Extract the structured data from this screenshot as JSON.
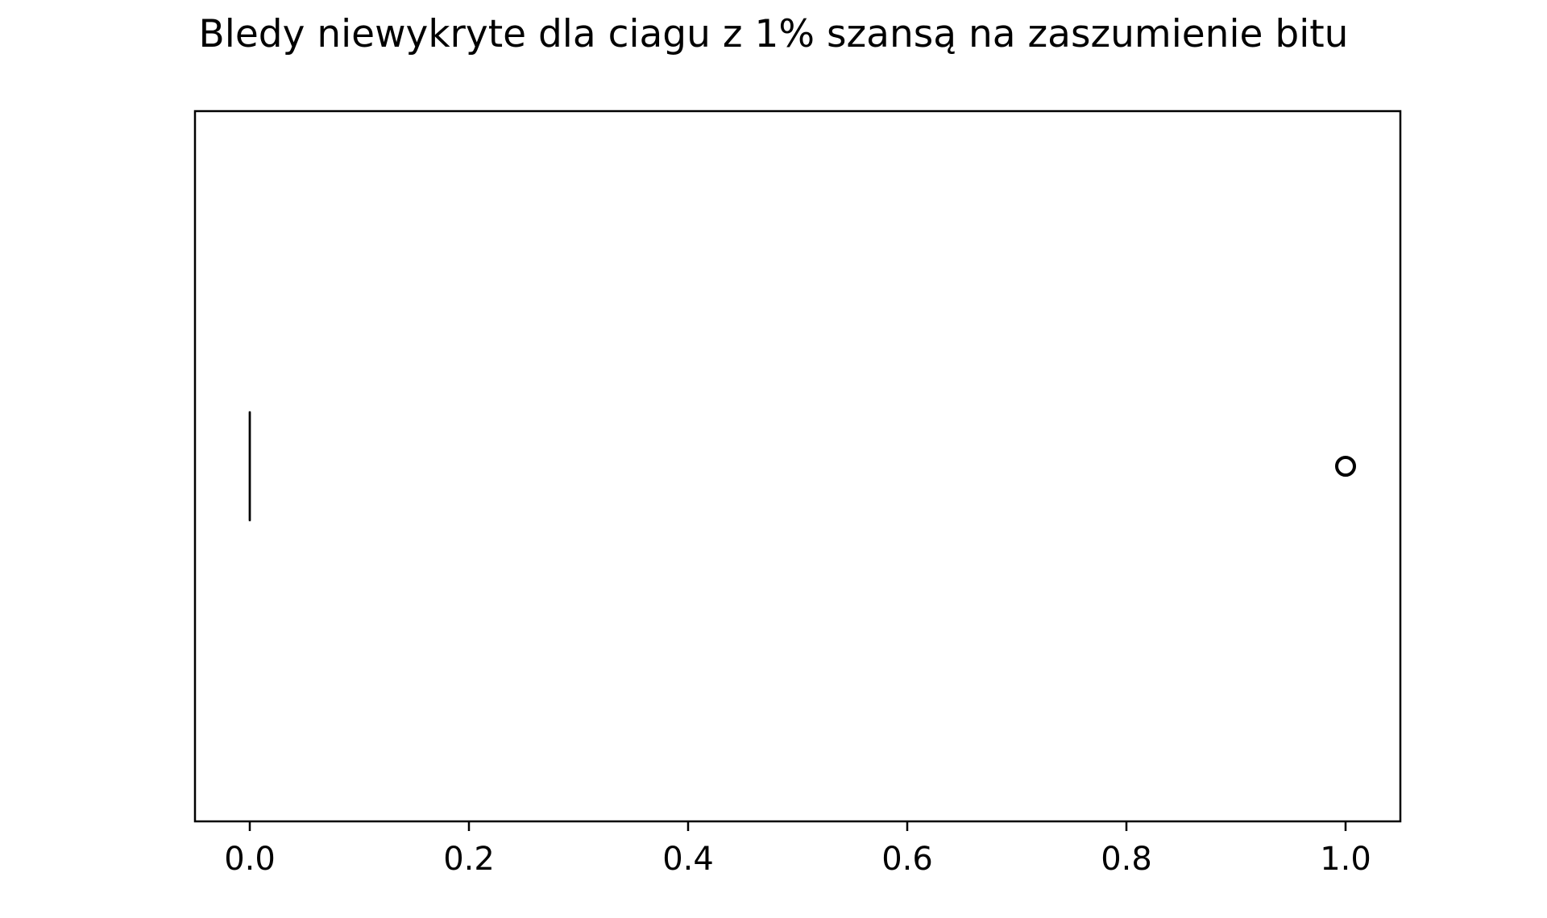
{
  "chart_data": {
    "type": "boxplot",
    "orientation": "horizontal",
    "title": "Bledy niewykryte dla ciagu z 1% szansą na zaszumienie bitu",
    "xlabel": "",
    "ylabel": "",
    "xlim": [
      -0.05,
      1.05
    ],
    "xticks": [
      0.0,
      0.2,
      0.4,
      0.6,
      0.8,
      1.0
    ],
    "xtick_labels": [
      "0.0",
      "0.2",
      "0.4",
      "0.6",
      "0.8",
      "1.0"
    ],
    "grid": false,
    "series": [
      {
        "q1": 0.0,
        "median": 0.0,
        "q3": 0.0,
        "whisker_low": 0.0,
        "whisker_high": 0.0,
        "outliers": [
          1.0
        ]
      }
    ]
  },
  "colors": {
    "axes": "#000000",
    "box": "#000000",
    "median": "#000000",
    "outlier": "#000000",
    "background": "#ffffff"
  }
}
